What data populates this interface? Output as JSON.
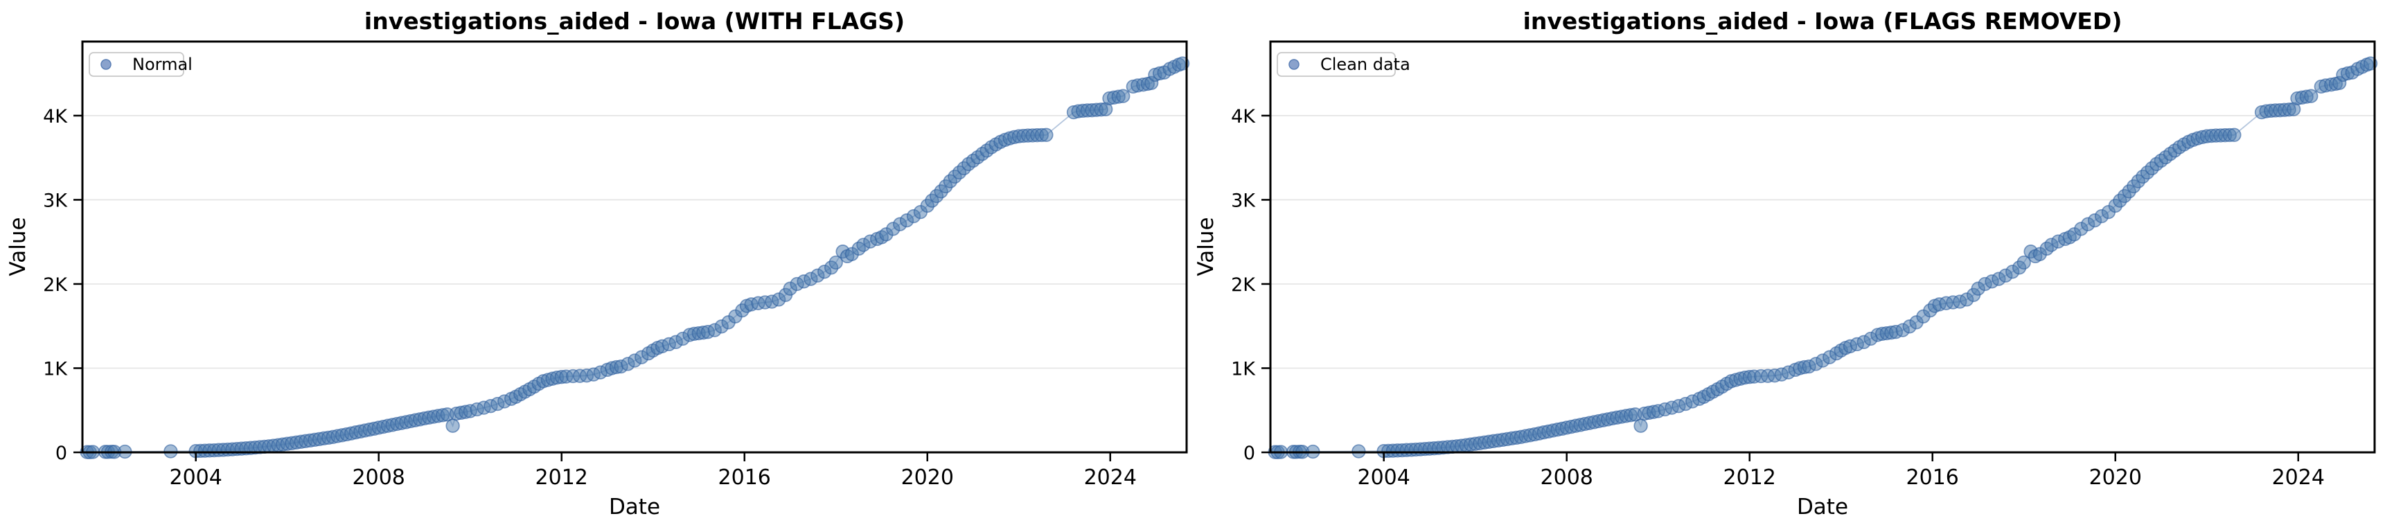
{
  "figure": {
    "background": "#ffffff",
    "colors": {
      "marker_fill": "#4a7aad",
      "marker_edge": "#2e5f9e",
      "connector_line": "#7797c1",
      "grid": "#e6e6e6",
      "spine": "#000000",
      "legend_border": "#c8c8c8",
      "legend_background": "#ffffff",
      "legend_marker_fill": "#8aa2cc",
      "legend_marker_edge": "#5b7fb5",
      "text": "#000000"
    }
  },
  "chart_data": [
    {
      "type": "scatter",
      "panel": "left",
      "title": "investigations_aided - Iowa (WITH FLAGS)",
      "xlabel": "Date",
      "ylabel": "Value",
      "legend": {
        "label": "Normal",
        "position": "upper-left"
      },
      "x_ticks": [
        2004,
        2008,
        2012,
        2016,
        2020,
        2024
      ],
      "y_ticks": [
        {
          "value": 0,
          "label": "0"
        },
        {
          "value": 1000,
          "label": "1K"
        },
        {
          "value": 2000,
          "label": "2K"
        },
        {
          "value": 3000,
          "label": "3K"
        },
        {
          "value": 4000,
          "label": "4K"
        }
      ],
      "xlim": [
        2001.52,
        2025.67
      ],
      "ylim": [
        0,
        4880
      ],
      "grid": "horizontal",
      "marker_style": "circle-with-connecting-line",
      "series": [
        {
          "name": "Normal",
          "points_ref": "shared_points"
        }
      ]
    },
    {
      "type": "scatter",
      "panel": "right",
      "title": "investigations_aided - Iowa (FLAGS REMOVED)",
      "xlabel": "Date",
      "ylabel": "Value",
      "legend": {
        "label": "Clean data",
        "position": "upper-left"
      },
      "x_ticks": [
        2004,
        2008,
        2012,
        2016,
        2020,
        2024
      ],
      "y_ticks": [
        {
          "value": 0,
          "label": "0"
        },
        {
          "value": 1000,
          "label": "1K"
        },
        {
          "value": 2000,
          "label": "2K"
        },
        {
          "value": 3000,
          "label": "3K"
        },
        {
          "value": 4000,
          "label": "4K"
        }
      ],
      "xlim": [
        2001.52,
        2025.67
      ],
      "ylim": [
        0,
        4880
      ],
      "grid": "horizontal",
      "marker_style": "circle-with-connecting-line",
      "series": [
        {
          "name": "Clean data",
          "points_ref": "shared_points"
        }
      ]
    }
  ],
  "shared_points": [
    [
      2001.62,
      3
    ],
    [
      2001.68,
      2
    ],
    [
      2001.75,
      4
    ],
    [
      2002.02,
      6
    ],
    [
      2002.08,
      5
    ],
    [
      2002.16,
      7
    ],
    [
      2002.22,
      6
    ],
    [
      2002.45,
      8
    ],
    [
      2003.45,
      12
    ],
    [
      2004.0,
      15
    ],
    [
      2004.1,
      17
    ],
    [
      2004.2,
      19
    ],
    [
      2004.3,
      22
    ],
    [
      2004.4,
      24
    ],
    [
      2004.5,
      27
    ],
    [
      2004.6,
      30
    ],
    [
      2004.7,
      33
    ],
    [
      2004.8,
      36
    ],
    [
      2004.9,
      40
    ],
    [
      2005.0,
      44
    ],
    [
      2005.1,
      48
    ],
    [
      2005.2,
      52
    ],
    [
      2005.3,
      57
    ],
    [
      2005.4,
      62
    ],
    [
      2005.5,
      67
    ],
    [
      2005.6,
      72
    ],
    [
      2005.7,
      78
    ],
    [
      2005.8,
      85
    ],
    [
      2005.9,
      93
    ],
    [
      2006.0,
      101
    ],
    [
      2006.1,
      109
    ],
    [
      2006.2,
      117
    ],
    [
      2006.3,
      125
    ],
    [
      2006.4,
      133
    ],
    [
      2006.5,
      141
    ],
    [
      2006.6,
      149
    ],
    [
      2006.7,
      157
    ],
    [
      2006.8,
      166
    ],
    [
      2006.9,
      174
    ],
    [
      2007.0,
      183
    ],
    [
      2007.1,
      193
    ],
    [
      2007.2,
      203
    ],
    [
      2007.3,
      214
    ],
    [
      2007.4,
      225
    ],
    [
      2007.5,
      237
    ],
    [
      2007.6,
      248
    ],
    [
      2007.7,
      259
    ],
    [
      2007.8,
      270
    ],
    [
      2007.9,
      281
    ],
    [
      2008.0,
      293
    ],
    [
      2008.1,
      304
    ],
    [
      2008.2,
      315
    ],
    [
      2008.3,
      326
    ],
    [
      2008.4,
      337
    ],
    [
      2008.5,
      348
    ],
    [
      2008.6,
      359
    ],
    [
      2008.7,
      370
    ],
    [
      2008.8,
      381
    ],
    [
      2008.9,
      392
    ],
    [
      2009.0,
      403
    ],
    [
      2009.1,
      413
    ],
    [
      2009.2,
      423
    ],
    [
      2009.3,
      433
    ],
    [
      2009.4,
      442
    ],
    [
      2009.5,
      450
    ],
    [
      2009.62,
      315
    ],
    [
      2009.7,
      460
    ],
    [
      2009.8,
      470
    ],
    [
      2009.9,
      480
    ],
    [
      2010.0,
      490
    ],
    [
      2010.15,
      510
    ],
    [
      2010.3,
      530
    ],
    [
      2010.45,
      550
    ],
    [
      2010.6,
      575
    ],
    [
      2010.75,
      605
    ],
    [
      2010.9,
      635
    ],
    [
      2011.0,
      660
    ],
    [
      2011.1,
      690
    ],
    [
      2011.2,
      720
    ],
    [
      2011.3,
      750
    ],
    [
      2011.4,
      780
    ],
    [
      2011.5,
      815
    ],
    [
      2011.6,
      845
    ],
    [
      2011.7,
      860
    ],
    [
      2011.8,
      875
    ],
    [
      2011.9,
      888
    ],
    [
      2012.0,
      895
    ],
    [
      2012.1,
      900
    ],
    [
      2012.25,
      905
    ],
    [
      2012.4,
      908
    ],
    [
      2012.55,
      912
    ],
    [
      2012.7,
      925
    ],
    [
      2012.85,
      950
    ],
    [
      2013.0,
      980
    ],
    [
      2013.1,
      1000
    ],
    [
      2013.2,
      1012
    ],
    [
      2013.3,
      1020
    ],
    [
      2013.45,
      1050
    ],
    [
      2013.6,
      1090
    ],
    [
      2013.75,
      1130
    ],
    [
      2013.9,
      1175
    ],
    [
      2014.0,
      1210
    ],
    [
      2014.1,
      1240
    ],
    [
      2014.2,
      1260
    ],
    [
      2014.35,
      1285
    ],
    [
      2014.5,
      1310
    ],
    [
      2014.65,
      1350
    ],
    [
      2014.8,
      1395
    ],
    [
      2014.9,
      1408
    ],
    [
      2015.0,
      1415
    ],
    [
      2015.1,
      1422
    ],
    [
      2015.2,
      1430
    ],
    [
      2015.35,
      1452
    ],
    [
      2015.5,
      1495
    ],
    [
      2015.65,
      1545
    ],
    [
      2015.8,
      1615
    ],
    [
      2015.95,
      1685
    ],
    [
      2016.05,
      1740
    ],
    [
      2016.15,
      1758
    ],
    [
      2016.3,
      1772
    ],
    [
      2016.45,
      1782
    ],
    [
      2016.6,
      1790
    ],
    [
      2016.75,
      1815
    ],
    [
      2016.9,
      1870
    ],
    [
      2017.0,
      1945
    ],
    [
      2017.15,
      2000
    ],
    [
      2017.3,
      2030
    ],
    [
      2017.45,
      2060
    ],
    [
      2017.6,
      2100
    ],
    [
      2017.75,
      2145
    ],
    [
      2017.9,
      2195
    ],
    [
      2018.0,
      2255
    ],
    [
      2018.15,
      2385
    ],
    [
      2018.25,
      2330
    ],
    [
      2018.35,
      2355
    ],
    [
      2018.5,
      2420
    ],
    [
      2018.6,
      2465
    ],
    [
      2018.75,
      2505
    ],
    [
      2018.9,
      2535
    ],
    [
      2019.0,
      2555
    ],
    [
      2019.1,
      2590
    ],
    [
      2019.25,
      2655
    ],
    [
      2019.4,
      2710
    ],
    [
      2019.55,
      2755
    ],
    [
      2019.7,
      2805
    ],
    [
      2019.85,
      2855
    ],
    [
      2020.0,
      2930
    ],
    [
      2020.1,
      2990
    ],
    [
      2020.2,
      3045
    ],
    [
      2020.3,
      3100
    ],
    [
      2020.4,
      3160
    ],
    [
      2020.5,
      3220
    ],
    [
      2020.6,
      3275
    ],
    [
      2020.7,
      3325
    ],
    [
      2020.8,
      3375
    ],
    [
      2020.9,
      3425
    ],
    [
      2021.0,
      3465
    ],
    [
      2021.1,
      3505
    ],
    [
      2021.2,
      3545
    ],
    [
      2021.3,
      3585
    ],
    [
      2021.4,
      3625
    ],
    [
      2021.5,
      3658
    ],
    [
      2021.6,
      3688
    ],
    [
      2021.7,
      3712
    ],
    [
      2021.8,
      3730
    ],
    [
      2021.9,
      3745
    ],
    [
      2022.0,
      3755
    ],
    [
      2022.1,
      3760
    ],
    [
      2022.2,
      3763
    ],
    [
      2022.3,
      3765
    ],
    [
      2022.4,
      3767
    ],
    [
      2022.5,
      3769
    ],
    [
      2022.6,
      3771
    ],
    [
      2023.2,
      4040
    ],
    [
      2023.3,
      4052
    ],
    [
      2023.4,
      4058
    ],
    [
      2023.5,
      4062
    ],
    [
      2023.6,
      4064
    ],
    [
      2023.7,
      4068
    ],
    [
      2023.8,
      4072
    ],
    [
      2023.9,
      4076
    ],
    [
      2023.98,
      4205
    ],
    [
      2024.08,
      4215
    ],
    [
      2024.18,
      4225
    ],
    [
      2024.28,
      4232
    ],
    [
      2024.5,
      4345
    ],
    [
      2024.6,
      4358
    ],
    [
      2024.72,
      4368
    ],
    [
      2024.82,
      4378
    ],
    [
      2024.9,
      4388
    ],
    [
      2024.98,
      4485
    ],
    [
      2025.08,
      4502
    ],
    [
      2025.18,
      4512
    ],
    [
      2025.3,
      4555
    ],
    [
      2025.4,
      4580
    ],
    [
      2025.5,
      4605
    ],
    [
      2025.58,
      4620
    ]
  ]
}
